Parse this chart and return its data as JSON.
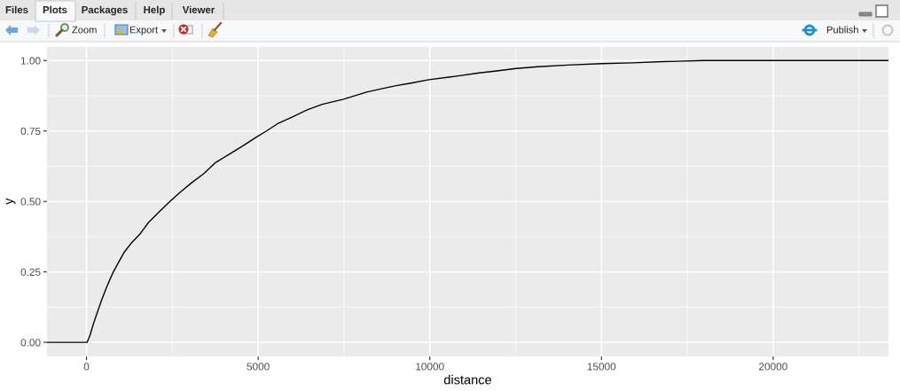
{
  "chart_data": {
    "type": "line",
    "xlabel": "distance",
    "ylabel": "y",
    "annotations": [
      "Files",
      "Plots",
      "Packages",
      "Help",
      "Viewer",
      "Zoom",
      "Export",
      "Publish"
    ],
    "x": [
      -1150,
      20,
      100,
      190,
      320,
      450,
      590,
      770,
      920,
      1090,
      1310,
      1570,
      1810,
      2070,
      2430,
      2730,
      3080,
      3420,
      3760,
      4110,
      4540,
      4970,
      5190,
      5570,
      6000,
      6430,
      6870,
      7490,
      8160,
      8590,
      9020,
      9450,
      9980,
      10740,
      11430,
      11950,
      12510,
      13150,
      14020,
      15010,
      15910,
      16770,
      17980,
      23360
    ],
    "series": [
      {
        "color": "#000000",
        "values": [
          0,
          0,
          0.024,
          0.061,
          0.108,
          0.153,
          0.197,
          0.247,
          0.281,
          0.318,
          0.353,
          0.386,
          0.426,
          0.457,
          0.5,
          0.533,
          0.568,
          0.599,
          0.638,
          0.664,
          0.696,
          0.73,
          0.746,
          0.776,
          0.8,
          0.825,
          0.845,
          0.863,
          0.888,
          0.9,
          0.911,
          0.92,
          0.932,
          0.944,
          0.956,
          0.963,
          0.972,
          0.978,
          0.984,
          0.989,
          0.992,
          0.996,
          1.0,
          1.0
        ]
      }
    ],
    "xlim": [
      -1150,
      23360
    ],
    "ylim": [
      -0.05,
      1.05
    ],
    "xticks": [
      0,
      5000,
      10000,
      15000,
      20000
    ],
    "yticks": [
      {
        "value": 0,
        "label": "0.00"
      },
      {
        "value": 0.25,
        "label": "0.25"
      },
      {
        "value": 0.5,
        "label": "0.50"
      },
      {
        "value": 0.75,
        "label": "0.75"
      },
      {
        "value": 1.0,
        "label": "1.00"
      }
    ],
    "grid": true
  }
}
